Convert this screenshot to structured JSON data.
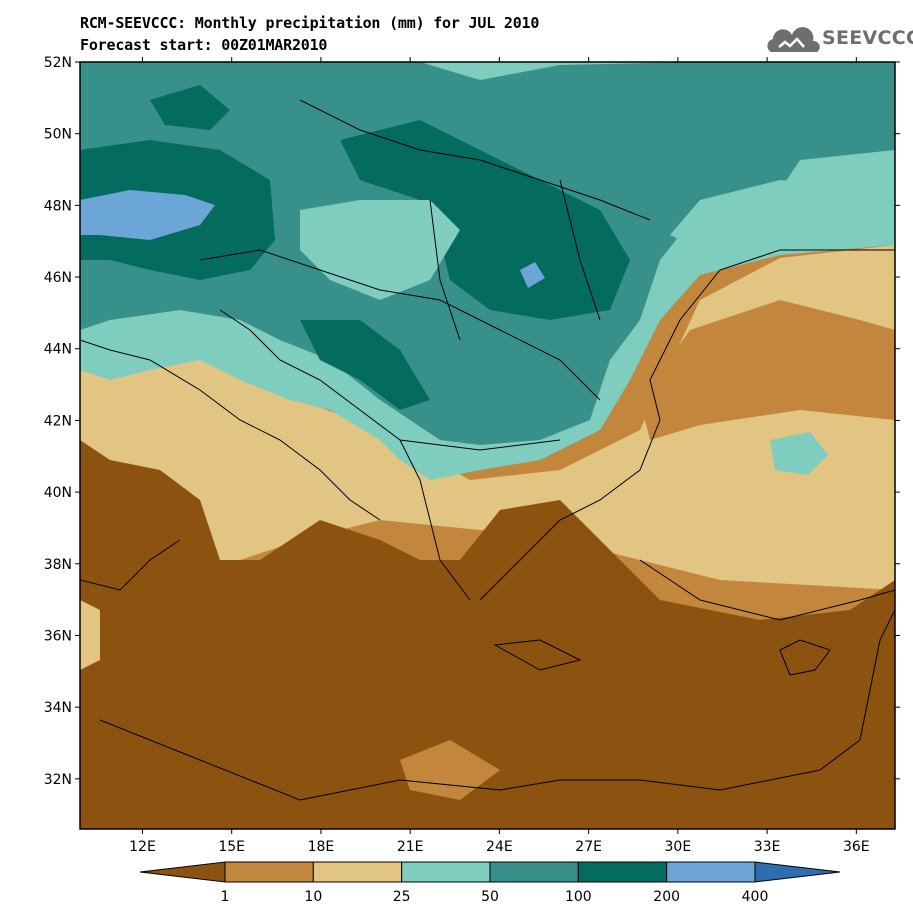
{
  "header": {
    "title": "RCM-SEEVCCC: Monthly precipitation (mm) for JUL 2010",
    "subtitle": "Forecast start: 00Z01MAR2010",
    "logo_text": "SEEVCCC"
  },
  "map": {
    "y_ticks": [
      "52N",
      "50N",
      "48N",
      "46N",
      "44N",
      "42N",
      "40N",
      "38N",
      "36N",
      "34N",
      "32N"
    ],
    "x_ticks": [
      "12E",
      "15E",
      "18E",
      "21E",
      "24E",
      "27E",
      "30E",
      "33E",
      "36E"
    ],
    "lat_range": [
      30.6,
      52
    ],
    "lon_range": [
      9.9,
      37.3
    ]
  },
  "legend": {
    "labels": [
      "1",
      "10",
      "25",
      "50",
      "100",
      "200",
      "400"
    ],
    "colors": [
      "#8b5210",
      "#c2873c",
      "#e2c483",
      "#7fcdbf",
      "#379089",
      "#046b5f",
      "#6ba6d6",
      "#2f6eae"
    ]
  },
  "colors": {
    "background": "#ffffff",
    "border": "#000000"
  }
}
